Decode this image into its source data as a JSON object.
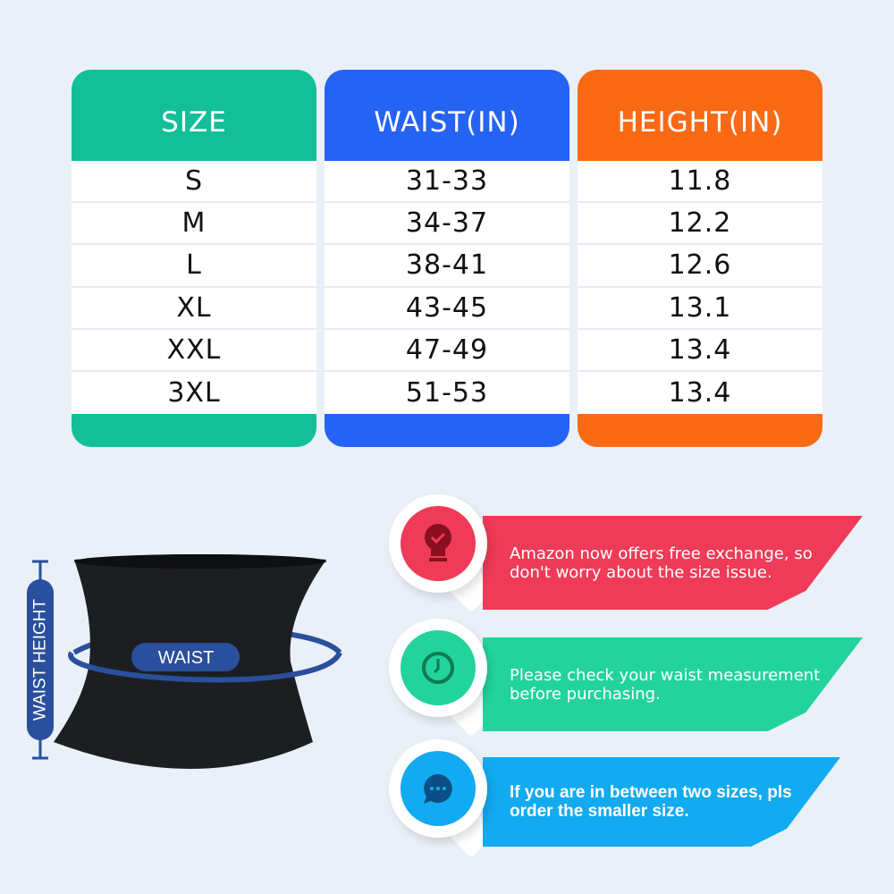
{
  "table": {
    "columns": [
      {
        "header": "SIZE",
        "color": "#13bf98",
        "values": [
          "S",
          "M",
          "L",
          "XL",
          "XXL",
          "3XL"
        ]
      },
      {
        "header": "WAIST(IN)",
        "color": "#2563f5",
        "values": [
          "31-33",
          "34-37",
          "38-41",
          "43-45",
          "47-49",
          "51-53"
        ]
      },
      {
        "header": "HEIGHT(IN)",
        "color": "#fa6a14",
        "values": [
          "11.8",
          "12.2",
          "12.6",
          "13.1",
          "13.4",
          "13.4"
        ]
      }
    ]
  },
  "diagram": {
    "waist_label": "WAIST",
    "height_label": "WAIST HEIGHT",
    "accent": "#2a4f9c"
  },
  "tips": [
    {
      "text": "Amazon now offers free exchange, so don't worry about the size issue.",
      "icon": "lightbulb-check-icon",
      "color": "#ef3b57",
      "icon_color": "#8a0f20"
    },
    {
      "text": "Please check your waist measurement before purchasing.",
      "icon": "clock-icon",
      "color": "#22d39c",
      "icon_color": "#0f7a50"
    },
    {
      "text": "If you are in between two sizes, pls order the smaller size.",
      "icon": "chat-bubble-icon",
      "color": "#12aaf0",
      "icon_color": "#0b4f86"
    }
  ]
}
